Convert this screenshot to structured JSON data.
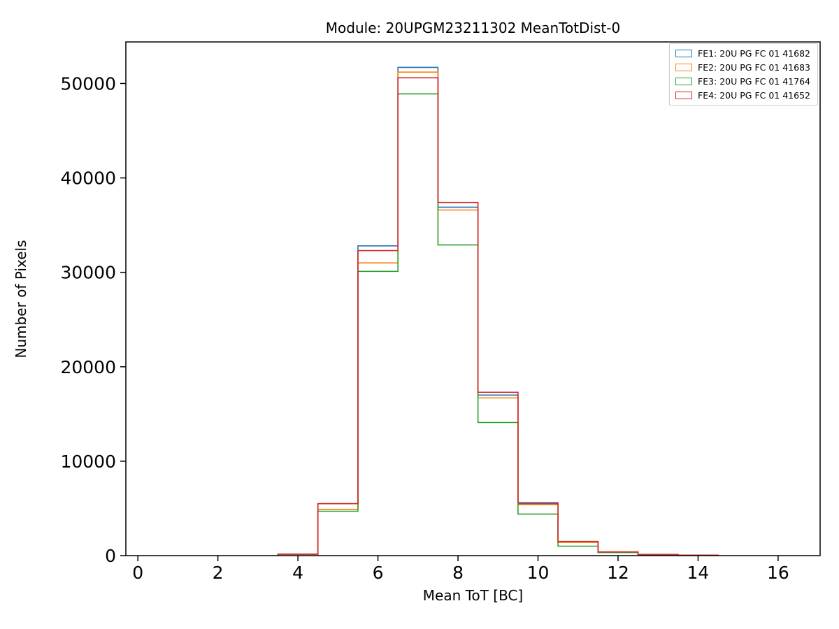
{
  "chart_data": {
    "type": "step-histogram",
    "title": "Module: 20UPGM23211302 MeanTotDist-0",
    "xlabel": "Mean ToT [BC]",
    "ylabel": "Number of Pixels",
    "xlim": [
      -0.3,
      17.05
    ],
    "ylim": [
      0,
      54400
    ],
    "xticks": [
      0,
      2,
      4,
      6,
      8,
      10,
      12,
      14,
      16
    ],
    "yticks": [
      0,
      10000,
      20000,
      30000,
      40000,
      50000
    ],
    "grid": false,
    "legend_position": "upper right",
    "bin_edges": [
      3.5,
      4.5,
      5.5,
      6.5,
      7.5,
      8.5,
      9.5,
      10.5,
      11.5,
      12.5,
      13.5,
      14.5
    ],
    "series": [
      {
        "name": "FE1: 20U PG FC 01 41682",
        "color": "#1f77b4",
        "values": [
          150,
          5500,
          32800,
          51700,
          36900,
          17000,
          5500,
          1450,
          380,
          120,
          40
        ]
      },
      {
        "name": "FE2: 20U PG FC 01 41683",
        "color": "#ff7f0e",
        "values": [
          150,
          4900,
          31000,
          51200,
          36600,
          16700,
          5400,
          1400,
          370,
          110,
          40
        ]
      },
      {
        "name": "FE3: 20U PG FC 01 41764",
        "color": "#2ca02c",
        "values": [
          140,
          4700,
          30100,
          48900,
          32900,
          14100,
          4400,
          1000,
          330,
          100,
          30
        ]
      },
      {
        "name": "FE4: 20U PG FC 01 41652",
        "color": "#d62728",
        "values": [
          150,
          5500,
          32300,
          50600,
          37400,
          17300,
          5600,
          1500,
          390,
          130,
          50
        ]
      }
    ]
  }
}
